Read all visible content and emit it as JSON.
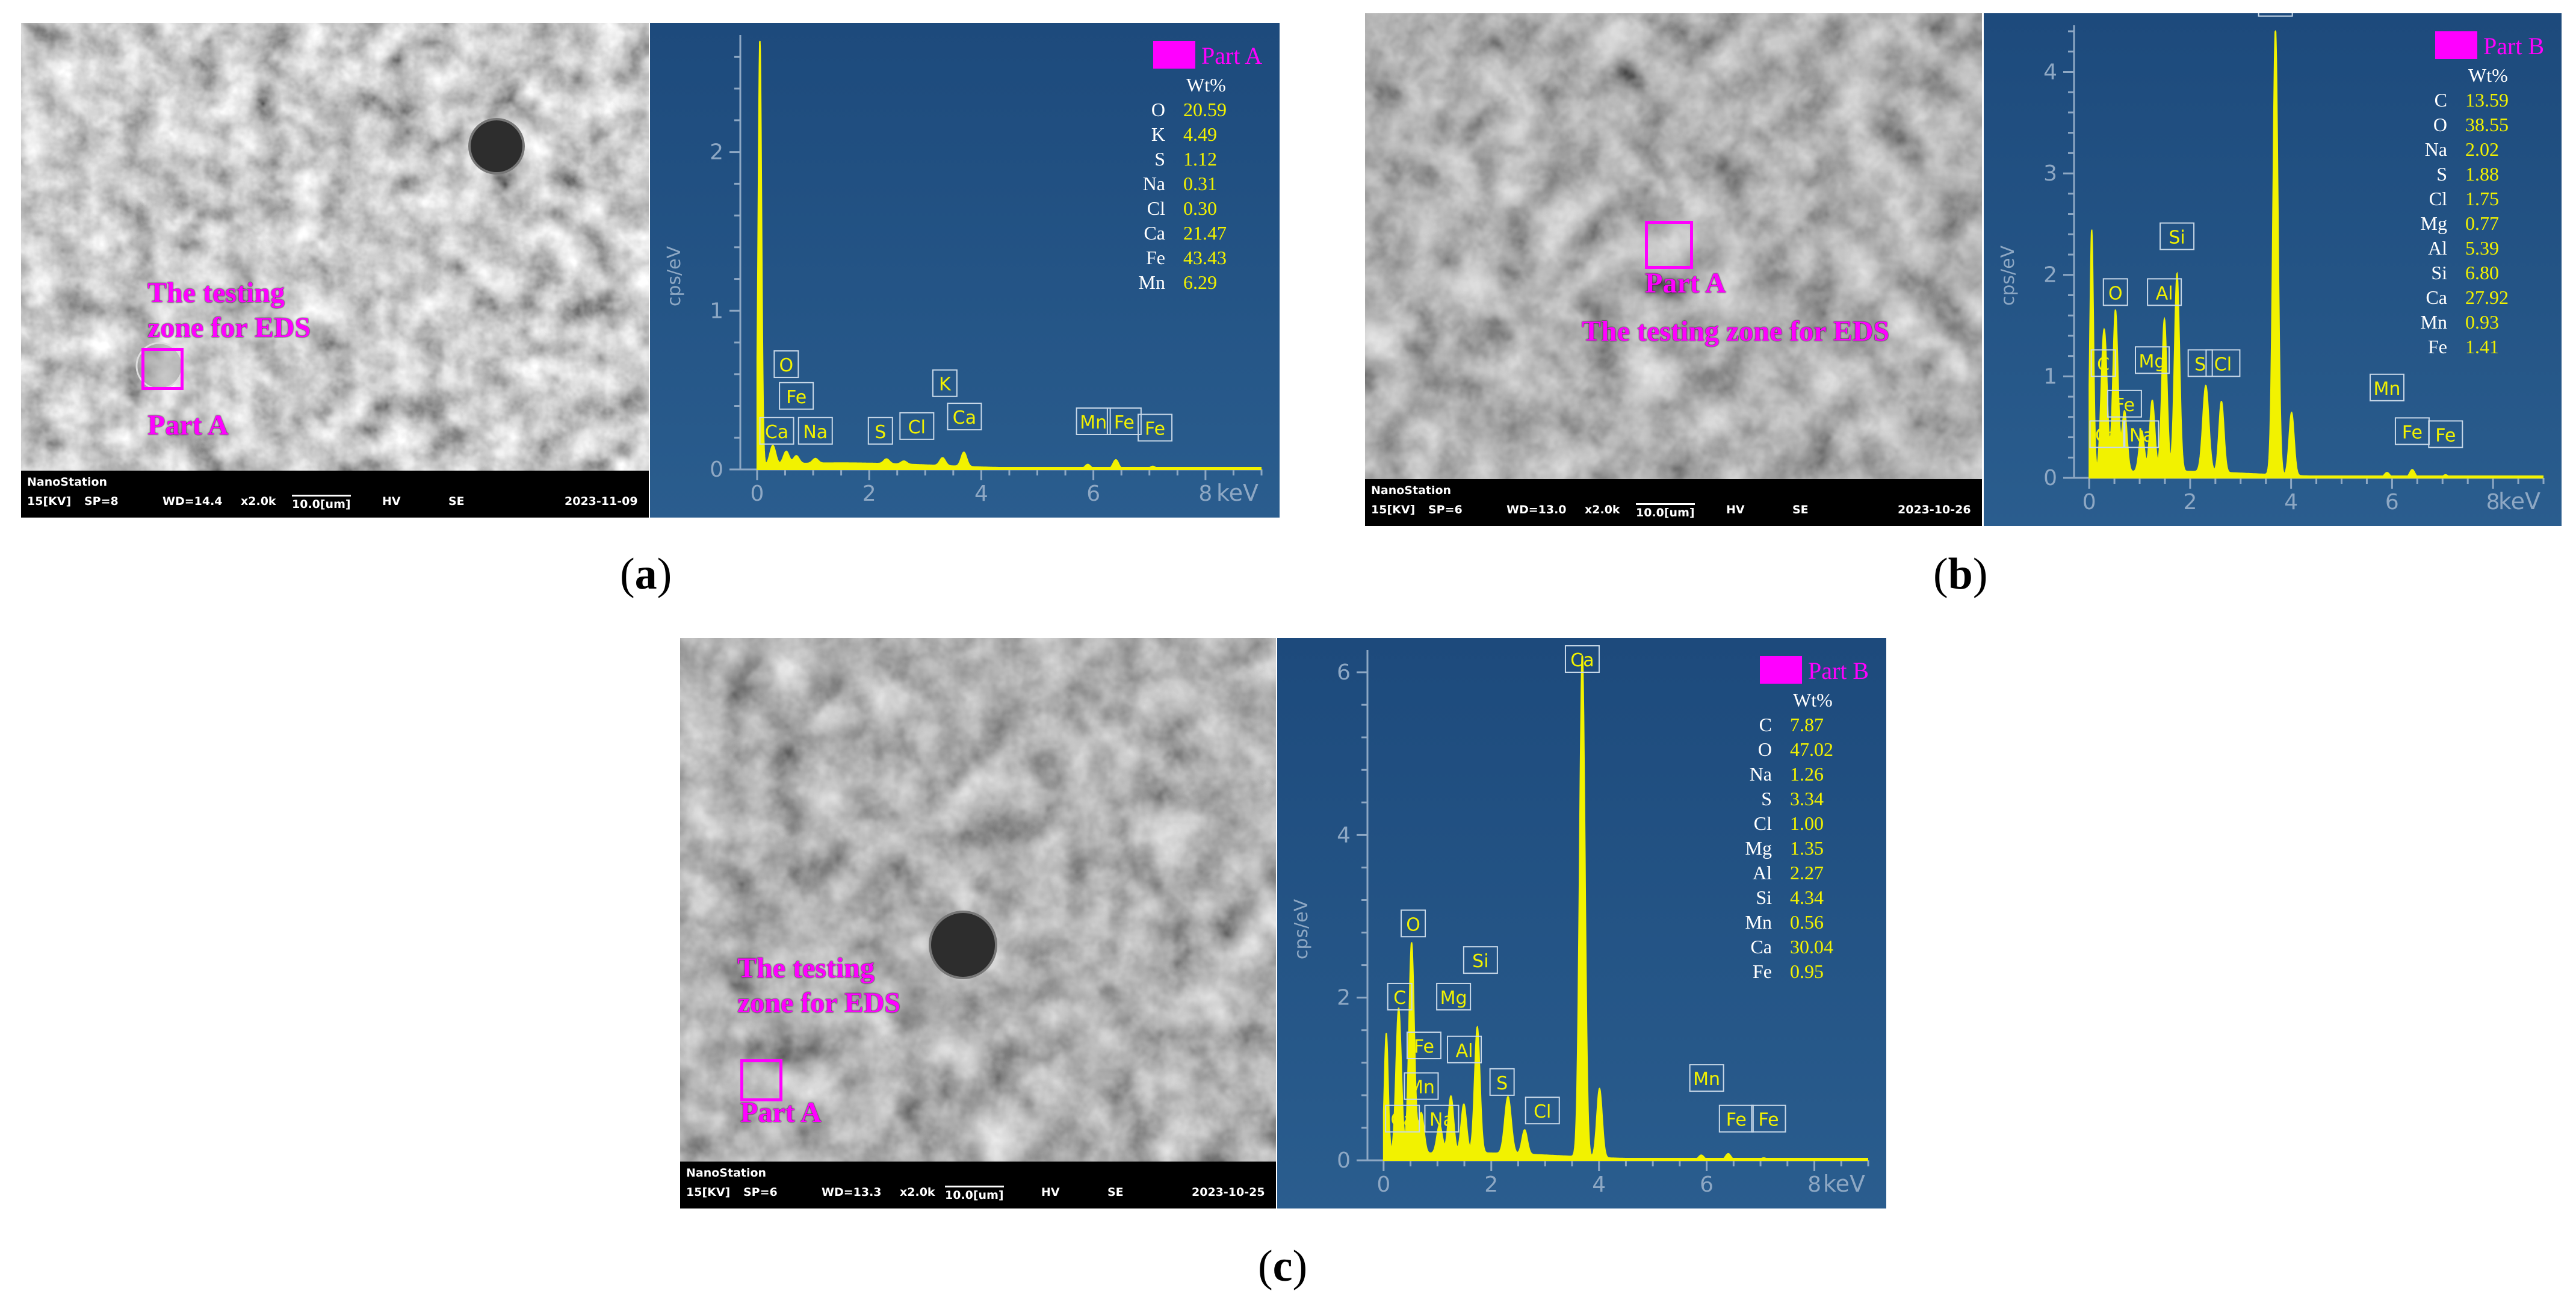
{
  "panels": [
    {
      "caption": "a",
      "sem": {
        "label_part": "Part A",
        "label_zone": "The testing\nzone for EDS",
        "bar": {
          "station": "NanoStation",
          "kv": "15[KV]",
          "sp": "SP=8",
          "wd": "WD=14.4",
          "mag": "x2.0k",
          "scale": "10.0[um]",
          "mode1": "HV",
          "mode2": "SE",
          "date": "2023-11-09"
        }
      }
    },
    {
      "caption": "b",
      "sem": {
        "label_part": "Part A",
        "label_zone": "The testing zone for EDS",
        "bar": {
          "station": "NanoStation",
          "kv": "15[KV]",
          "sp": "SP=6",
          "wd": "WD=13.0",
          "mag": "x2.0k",
          "scale": "10.0[um]",
          "mode1": "HV",
          "mode2": "SE",
          "date": "2023-10-26"
        }
      }
    },
    {
      "caption": "c",
      "sem": {
        "label_part": "Part A",
        "label_zone": "The testing\nzone for EDS",
        "bar": {
          "station": "NanoStation",
          "kv": "15[KV]",
          "sp": "SP=6",
          "wd": "WD=13.3",
          "mag": "x2.0k",
          "scale": "10.0[um]",
          "mode1": "HV",
          "mode2": "SE",
          "date": "2023-10-25"
        }
      }
    }
  ],
  "colors": {
    "magenta": "#ff00ff",
    "eds_background": "#1f4e80",
    "spectrum": "#f2f200",
    "axis": "#8ea8c4"
  },
  "chart_data": [
    {
      "type": "line",
      "xlabel": "keV",
      "ylabel": "cps/eV",
      "xlim": [
        -0.3,
        9.0
      ],
      "ylim": [
        0,
        2.7
      ],
      "x_ticks": [
        0,
        2,
        4,
        6,
        8
      ],
      "y_ticks": [
        0,
        1,
        2
      ],
      "legend": "Part A",
      "table_header": "Wt%",
      "composition": [
        {
          "element": "O",
          "wt": "20.59"
        },
        {
          "element": "K",
          "wt": "4.49"
        },
        {
          "element": "S",
          "wt": "1.12"
        },
        {
          "element": "Na",
          "wt": "0.31"
        },
        {
          "element": "Cl",
          "wt": "0.30"
        },
        {
          "element": "Ca",
          "wt": "21.47"
        },
        {
          "element": "Fe",
          "wt": "43.43"
        },
        {
          "element": "Mn",
          "wt": "6.29"
        }
      ],
      "peaks": [
        {
          "x": 0.05,
          "y": 2.7,
          "w": 0.03
        },
        {
          "x": 0.28,
          "y": 0.12,
          "w": 0.05
        },
        {
          "x": 0.52,
          "y": 0.08,
          "w": 0.05
        },
        {
          "x": 0.7,
          "y": 0.05,
          "w": 0.05
        },
        {
          "x": 1.04,
          "y": 0.03,
          "w": 0.05
        },
        {
          "x": 2.31,
          "y": 0.03,
          "w": 0.05
        },
        {
          "x": 2.62,
          "y": 0.02,
          "w": 0.05
        },
        {
          "x": 3.31,
          "y": 0.05,
          "w": 0.05
        },
        {
          "x": 3.69,
          "y": 0.09,
          "w": 0.05
        },
        {
          "x": 5.9,
          "y": 0.03,
          "w": 0.05
        },
        {
          "x": 6.4,
          "y": 0.06,
          "w": 0.05
        },
        {
          "x": 7.06,
          "y": 0.02,
          "w": 0.05
        }
      ],
      "peak_labels": [
        {
          "text": "O",
          "x": 0.52,
          "y": 0.58
        },
        {
          "text": "Fe",
          "x": 0.7,
          "y": 0.38
        },
        {
          "text": "Ca",
          "x": 0.35,
          "y": 0.16
        },
        {
          "text": "Na",
          "x": 1.04,
          "y": 0.16
        },
        {
          "text": "S",
          "x": 2.2,
          "y": 0.16
        },
        {
          "text": "Cl",
          "x": 2.85,
          "y": 0.19
        },
        {
          "text": "K",
          "x": 3.35,
          "y": 0.46
        },
        {
          "text": "Ca",
          "x": 3.7,
          "y": 0.25
        },
        {
          "text": "Mn",
          "x": 6.0,
          "y": 0.22
        },
        {
          "text": "Fe",
          "x": 6.55,
          "y": 0.22
        },
        {
          "text": "Fe",
          "x": 7.1,
          "y": 0.18
        }
      ]
    },
    {
      "type": "line",
      "xlabel": "keV",
      "ylabel": "cps/eV",
      "xlim": [
        -0.3,
        9.0
      ],
      "ylim": [
        0,
        4.4
      ],
      "x_ticks": [
        0,
        2,
        4,
        6,
        8
      ],
      "y_ticks": [
        0,
        1,
        2,
        3,
        4
      ],
      "legend": "Part B",
      "table_header": "Wt%",
      "composition": [
        {
          "element": "C",
          "wt": "13.59"
        },
        {
          "element": "O",
          "wt": "38.55"
        },
        {
          "element": "Na",
          "wt": "2.02"
        },
        {
          "element": "S",
          "wt": "1.88"
        },
        {
          "element": "Cl",
          "wt": "1.75"
        },
        {
          "element": "Mg",
          "wt": "0.77"
        },
        {
          "element": "Al",
          "wt": "5.39"
        },
        {
          "element": "Si",
          "wt": "6.80"
        },
        {
          "element": "Ca",
          "wt": "27.92"
        },
        {
          "element": "Mn",
          "wt": "0.93"
        },
        {
          "element": "Fe",
          "wt": "1.41"
        }
      ],
      "peaks": [
        {
          "x": 0.05,
          "y": 2.4,
          "w": 0.035
        },
        {
          "x": 0.28,
          "y": 1.2,
          "w": 0.05
        },
        {
          "x": 0.34,
          "y": 0.5,
          "w": 0.04
        },
        {
          "x": 0.52,
          "y": 1.6,
          "w": 0.05
        },
        {
          "x": 0.7,
          "y": 0.6,
          "w": 0.05
        },
        {
          "x": 1.04,
          "y": 0.4,
          "w": 0.05
        },
        {
          "x": 1.25,
          "y": 0.7,
          "w": 0.05
        },
        {
          "x": 1.49,
          "y": 1.5,
          "w": 0.05
        },
        {
          "x": 1.74,
          "y": 1.95,
          "w": 0.05
        },
        {
          "x": 2.31,
          "y": 0.85,
          "w": 0.06
        },
        {
          "x": 2.62,
          "y": 0.7,
          "w": 0.05
        },
        {
          "x": 3.69,
          "y": 4.4,
          "w": 0.05
        },
        {
          "x": 4.01,
          "y": 0.62,
          "w": 0.05
        },
        {
          "x": 5.9,
          "y": 0.05,
          "w": 0.05
        },
        {
          "x": 6.4,
          "y": 0.08,
          "w": 0.05
        },
        {
          "x": 7.06,
          "y": 0.03,
          "w": 0.05
        }
      ],
      "peak_labels": [
        {
          "text": "Ca",
          "x": 3.69,
          "y": 4.55
        },
        {
          "text": "Si",
          "x": 1.74,
          "y": 2.25
        },
        {
          "text": "Al",
          "x": 1.49,
          "y": 1.7
        },
        {
          "text": "O",
          "x": 0.52,
          "y": 1.7
        },
        {
          "text": "Mg",
          "x": 1.25,
          "y": 1.03
        },
        {
          "text": "C",
          "x": 0.28,
          "y": 1.0
        },
        {
          "text": "Fe",
          "x": 0.7,
          "y": 0.6
        },
        {
          "text": "S",
          "x": 2.2,
          "y": 1.0
        },
        {
          "text": "Cl",
          "x": 2.65,
          "y": 1.0
        },
        {
          "text": "Ca",
          "x": 0.35,
          "y": 0.3
        },
        {
          "text": "Na",
          "x": 1.04,
          "y": 0.3
        },
        {
          "text": "Mn",
          "x": 5.9,
          "y": 0.76
        },
        {
          "text": "Fe",
          "x": 6.4,
          "y": 0.33
        },
        {
          "text": "Fe",
          "x": 7.06,
          "y": 0.3
        }
      ]
    },
    {
      "type": "line",
      "xlabel": "keV",
      "ylabel": "cps/eV",
      "xlim": [
        -0.3,
        9.0
      ],
      "ylim": [
        0,
        6.2
      ],
      "x_ticks": [
        0,
        2,
        4,
        6,
        8
      ],
      "y_ticks": [
        0,
        2,
        4,
        6
      ],
      "legend": "Part B",
      "table_header": "Wt%",
      "composition": [
        {
          "element": "C",
          "wt": "7.87"
        },
        {
          "element": "O",
          "wt": "47.02"
        },
        {
          "element": "Na",
          "wt": "1.26"
        },
        {
          "element": "S",
          "wt": "3.34"
        },
        {
          "element": "Cl",
          "wt": "1.00"
        },
        {
          "element": "Mg",
          "wt": "1.35"
        },
        {
          "element": "Al",
          "wt": "2.27"
        },
        {
          "element": "Si",
          "wt": "4.34"
        },
        {
          "element": "Mn",
          "wt": "0.56"
        },
        {
          "element": "Ca",
          "wt": "30.04"
        },
        {
          "element": "Fe",
          "wt": "0.95"
        }
      ],
      "peaks": [
        {
          "x": 0.05,
          "y": 1.5,
          "w": 0.035
        },
        {
          "x": 0.28,
          "y": 1.8,
          "w": 0.05
        },
        {
          "x": 0.52,
          "y": 2.6,
          "w": 0.05
        },
        {
          "x": 0.7,
          "y": 0.5,
          "w": 0.05
        },
        {
          "x": 1.04,
          "y": 0.35,
          "w": 0.05
        },
        {
          "x": 1.25,
          "y": 0.7,
          "w": 0.05
        },
        {
          "x": 1.49,
          "y": 0.6,
          "w": 0.05
        },
        {
          "x": 1.74,
          "y": 1.55,
          "w": 0.05
        },
        {
          "x": 2.31,
          "y": 0.7,
          "w": 0.06
        },
        {
          "x": 2.62,
          "y": 0.3,
          "w": 0.05
        },
        {
          "x": 3.69,
          "y": 6.2,
          "w": 0.05
        },
        {
          "x": 4.01,
          "y": 0.85,
          "w": 0.05
        },
        {
          "x": 5.9,
          "y": 0.06,
          "w": 0.05
        },
        {
          "x": 6.4,
          "y": 0.08,
          "w": 0.05
        },
        {
          "x": 7.06,
          "y": 0.03,
          "w": 0.05
        }
      ],
      "peak_labels": [
        {
          "text": "Ca",
          "x": 3.69,
          "y": 6.0
        },
        {
          "text": "O",
          "x": 0.55,
          "y": 2.75
        },
        {
          "text": "Si",
          "x": 1.8,
          "y": 2.3
        },
        {
          "text": "Mg",
          "x": 1.3,
          "y": 1.85
        },
        {
          "text": "C",
          "x": 0.3,
          "y": 1.85
        },
        {
          "text": "Fe",
          "x": 0.75,
          "y": 1.25
        },
        {
          "text": "Al",
          "x": 1.5,
          "y": 1.2
        },
        {
          "text": "Mn",
          "x": 0.7,
          "y": 0.75
        },
        {
          "text": "S",
          "x": 2.2,
          "y": 0.8
        },
        {
          "text": "Cl",
          "x": 2.95,
          "y": 0.45
        },
        {
          "text": "Ca",
          "x": 0.35,
          "y": 0.35
        },
        {
          "text": "Na",
          "x": 1.08,
          "y": 0.35
        },
        {
          "text": "Mn",
          "x": 6.0,
          "y": 0.85
        },
        {
          "text": "Fe",
          "x": 6.55,
          "y": 0.35
        },
        {
          "text": "Fe",
          "x": 7.15,
          "y": 0.35
        }
      ]
    }
  ]
}
